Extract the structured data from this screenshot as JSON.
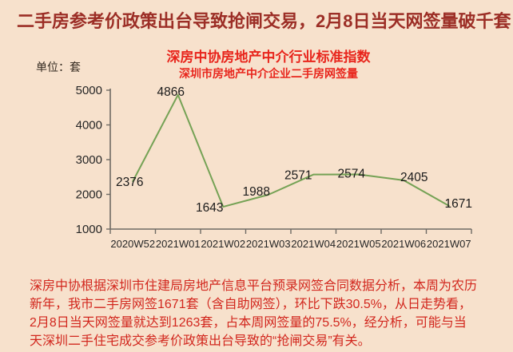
{
  "page": {
    "headline": "二手房参考价政策出台导致抢闸交易，2月8日当天网签量破千套",
    "unit_label": "单位：套"
  },
  "chart_data": {
    "type": "line",
    "title": "深房中协房地产中介行业标准指数",
    "subtitle": "深圳市房地产中介企业二手房网签量",
    "categories": [
      "2020W52",
      "2021W01",
      "2021W02",
      "2021W03",
      "2021W04",
      "2021W05",
      "2021W06",
      "2021W07"
    ],
    "values": [
      2376,
      4866,
      1643,
      1988,
      2571,
      2574,
      2405,
      1671
    ],
    "ylabel": "单位：套",
    "xlabel": "",
    "ylim": [
      1000,
      5000
    ],
    "ytick_step": 1000,
    "yticks": [
      1000,
      2000,
      3000,
      4000,
      5000
    ],
    "grid": false,
    "legend": "none",
    "data_labels": true,
    "line_color": "#75a255",
    "data_label_color": "#1a1a1a",
    "axis_color": "#6e6a64",
    "tick_label_color": "#262626"
  },
  "analysis": {
    "lines": [
      "深房中协根据深圳市住建局房地产信息平台预录网签合同数据分析，本周为农历",
      "新年，我市二手房网签1671套（含自助网签），环比下跌30.5%，从日走势看，",
      "2月8日当天网签量就达到1263套，占本周网签量的75.5%，经分析，可能与当",
      "天深圳二手住宅成交参考价政策出台导致的“抢闸交易”有关。"
    ]
  },
  "colors": {
    "background": "#f7e1cc",
    "headline_text": "#9c2e26",
    "chart_title_text": "#e8251c",
    "analysis_text": "#d2271e",
    "line": "#75a255"
  }
}
